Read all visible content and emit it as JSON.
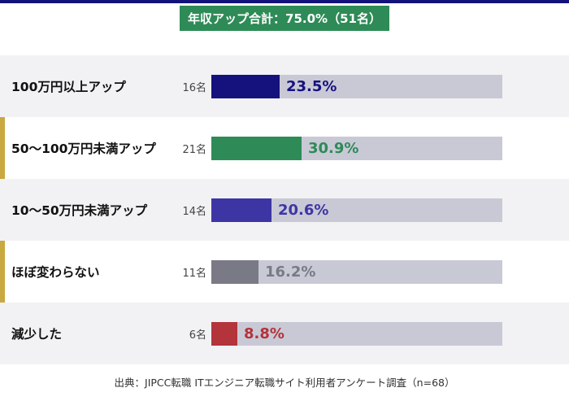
{
  "summary": "年収アップ合計：75.0%（51名）",
  "source": "出典：JIPCC転職 ITエンジニア転職サイト利用者アンケート調査（n=68）",
  "colors": {
    "accent": "#c9a840",
    "track": "#c9c9d6",
    "summary_bg": "#2e8b57"
  },
  "chart_data": {
    "type": "bar",
    "orientation": "horizontal",
    "categories": [
      "100万円以上アップ",
      "50〜100万円未満アップ",
      "10〜50万円未満アップ",
      "ほぼ変わらない",
      "減少した"
    ],
    "values": [
      23.5,
      30.9,
      20.6,
      16.2,
      8.8
    ],
    "counts": [
      "16名",
      "21名",
      "14名",
      "11名",
      "6名"
    ],
    "value_labels": [
      "23.5%",
      "30.9%",
      "20.6%",
      "16.2%",
      "8.8%"
    ],
    "bar_colors": [
      "#15127e",
      "#2e8b57",
      "#3e35a5",
      "#7a7a86",
      "#b3343a"
    ],
    "xlim": [
      0,
      100
    ]
  }
}
